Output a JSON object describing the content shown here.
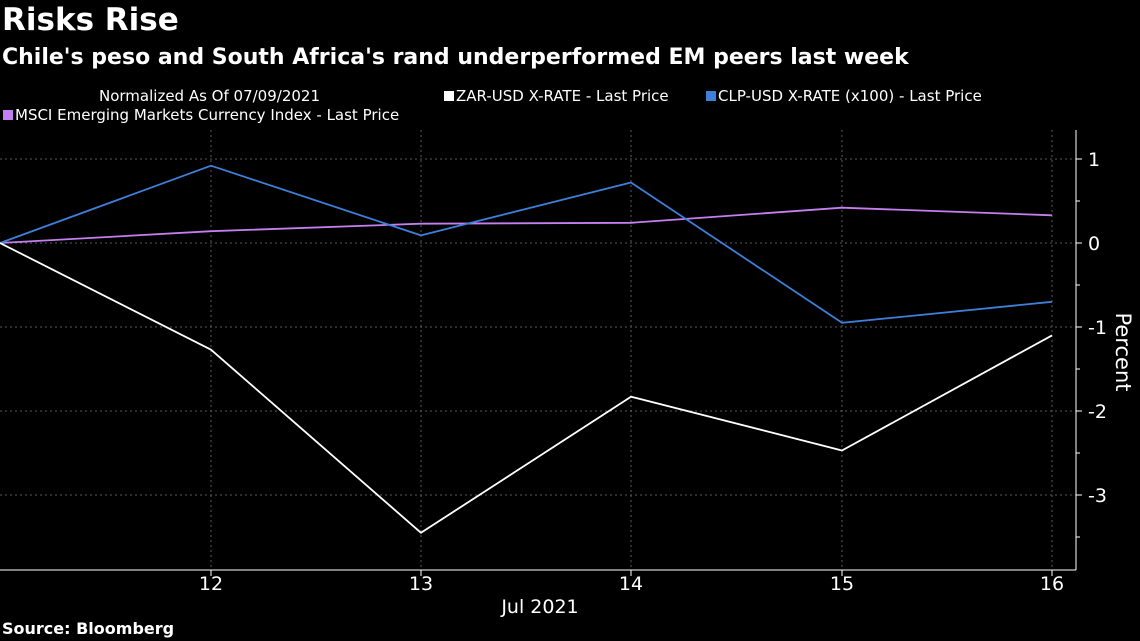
{
  "title": "Risks Rise",
  "subtitle": "Chile's peso and South Africa's rand underperformed EM peers last week",
  "normalized_note": "Normalized As Of 07/09/2021",
  "source": "Source: Bloomberg",
  "chart_data": {
    "type": "line",
    "x": [
      "09",
      "12",
      "13",
      "14",
      "15",
      "16"
    ],
    "x_tick_labels": [
      "12",
      "13",
      "14",
      "15",
      "16"
    ],
    "xlabel": "Jul 2021",
    "ylabel": "Percent",
    "ylim": [
      -3.9,
      1.35
    ],
    "y_ticks": [
      1,
      0,
      -1,
      -2,
      -3
    ],
    "y_tick_labels": [
      "1",
      "0",
      "-1",
      "-2",
      "-3"
    ],
    "grid": true,
    "legend_position": "top",
    "series": [
      {
        "name": "ZAR-USD X-RATE - Last Price",
        "color": "#ffffff",
        "values": [
          0,
          -1.27,
          -3.45,
          -1.83,
          -2.47,
          -1.1
        ]
      },
      {
        "name": "CLP-USD X-RATE (x100) - Last Price",
        "color": "#3d7fd9",
        "values": [
          0,
          0.92,
          0.09,
          0.72,
          -0.95,
          -0.7
        ]
      },
      {
        "name": "MSCI Emerging Markets Currency Index - Last Price",
        "color": "#c67ff0",
        "values": [
          0,
          0.14,
          0.23,
          0.24,
          0.42,
          0.33
        ]
      }
    ]
  }
}
